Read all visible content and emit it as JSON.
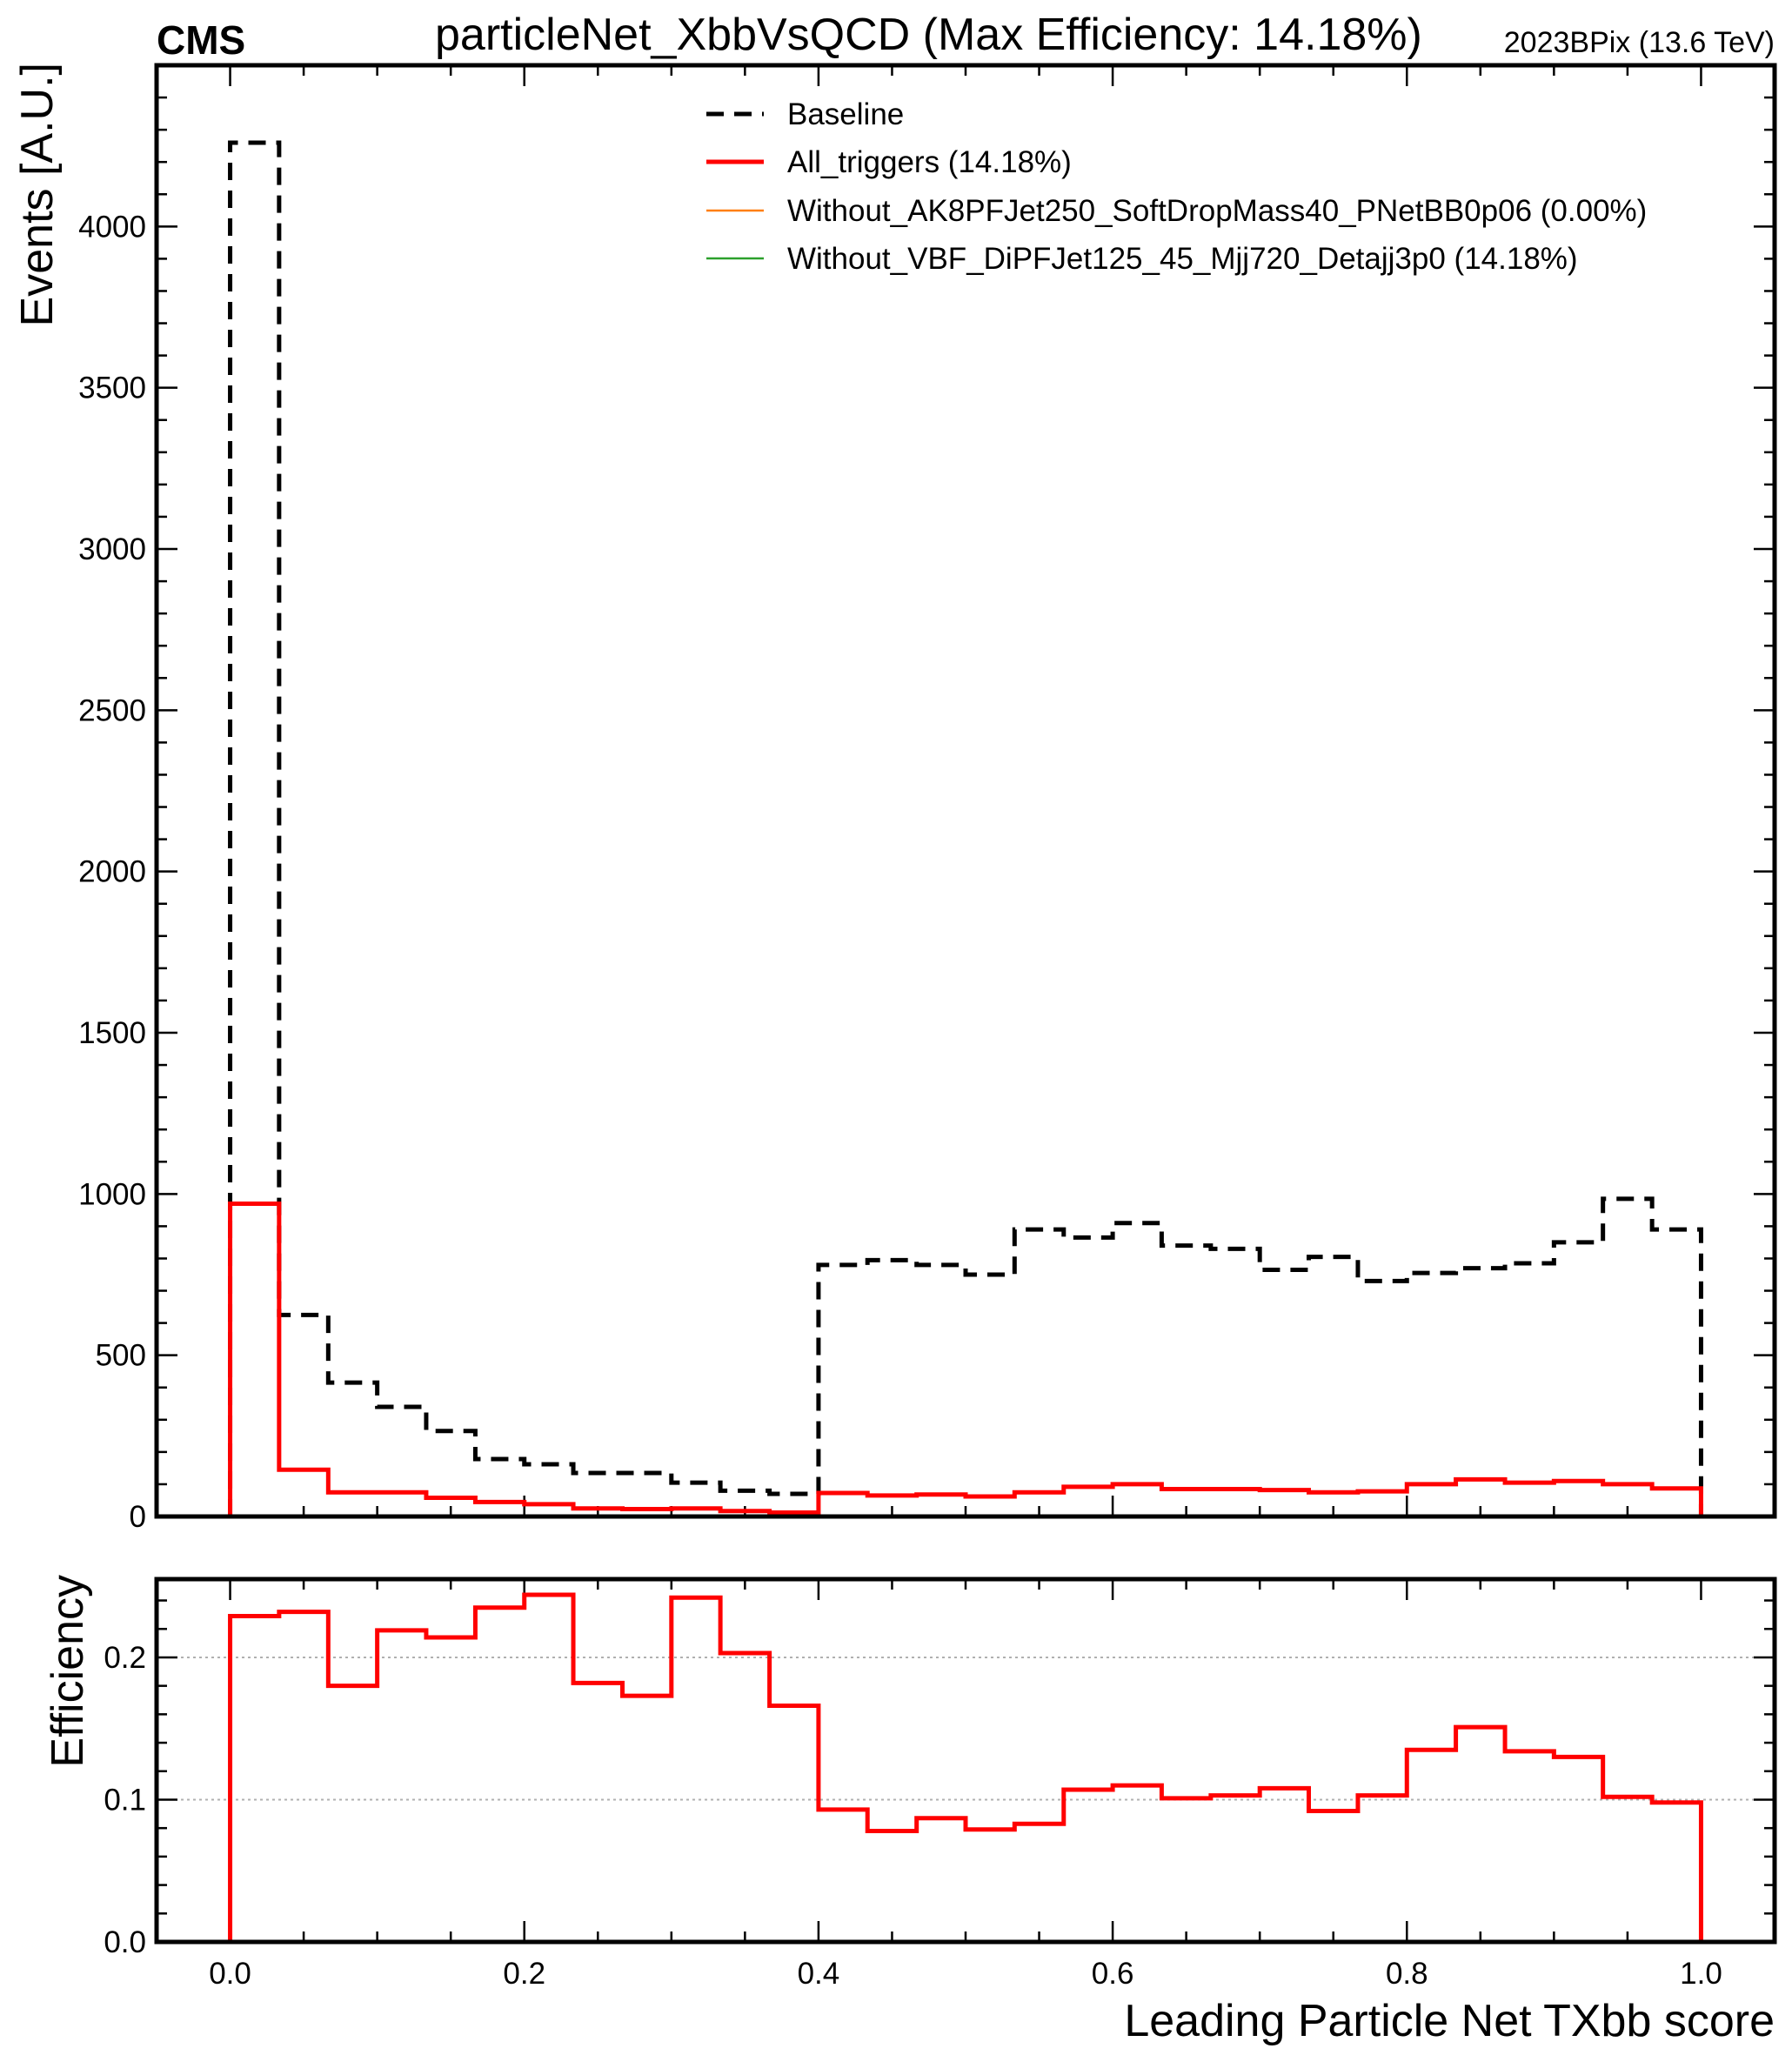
{
  "header": {
    "experiment": "CMS",
    "title": "particleNet_XbbVsQCD (Max Efficiency: 14.18%)",
    "run_info": "2023BPix (13.6 TeV)"
  },
  "colors": {
    "baseline": "#000000",
    "all_triggers": "#ff0000",
    "without_ak8": "#ff7f0e",
    "without_vbf": "#2ca02c",
    "grid": "#b0b0b0"
  },
  "chart_data": [
    {
      "type": "histogram-step",
      "xlabel": "",
      "ylabel": "Events [A.U.]",
      "xlim": [
        -0.05,
        1.05
      ],
      "ylim": [
        0,
        4500
      ],
      "yticks": [
        "0",
        "500",
        "1000",
        "1500",
        "2000",
        "2500",
        "3000",
        "3500",
        "4000"
      ],
      "grid": false,
      "legend_position": "top-right",
      "legend": [
        {
          "label": "Baseline",
          "style": "dashed",
          "color": "#000000"
        },
        {
          "label": "All_triggers (14.18%)",
          "style": "solid-thick",
          "color": "#ff0000"
        },
        {
          "label": "Without_AK8PFJet250_SoftDropMass40_PNetBB0p06 (0.00%)",
          "style": "solid-thin",
          "color": "#ff7f0e"
        },
        {
          "label": "Without_VBF_DiPFJet125_45_Mjj720_Detajj3p0 (14.18%)",
          "style": "solid-thin",
          "color": "#2ca02c"
        }
      ],
      "bin_edges": [
        0.0,
        0.0333,
        0.0667,
        0.1,
        0.1333,
        0.1667,
        0.2,
        0.2333,
        0.2667,
        0.3,
        0.3333,
        0.3667,
        0.4,
        0.4333,
        0.4667,
        0.5,
        0.5333,
        0.5667,
        0.6,
        0.6333,
        0.6667,
        0.7,
        0.7333,
        0.7667,
        0.8,
        0.8333,
        0.8667,
        0.9,
        0.9333,
        0.9667,
        1.0
      ],
      "series": [
        {
          "name": "Baseline",
          "values": [
            4260,
            625,
            415,
            340,
            265,
            178,
            162,
            135,
            135,
            105,
            80,
            70,
            780,
            795,
            780,
            750,
            890,
            865,
            910,
            840,
            830,
            765,
            805,
            730,
            755,
            770,
            785,
            850,
            985,
            890
          ]
        },
        {
          "name": "All_triggers (14.18%)",
          "values": [
            970,
            145,
            75,
            75,
            58,
            45,
            38,
            25,
            23,
            25,
            17,
            12,
            73,
            65,
            68,
            62,
            75,
            92,
            100,
            85,
            85,
            82,
            75,
            78,
            100,
            115,
            105,
            110,
            100,
            87
          ]
        }
      ]
    },
    {
      "type": "histogram-step",
      "xlabel": "Leading Particle Net TXbb score",
      "ylabel": "Efficiency",
      "xlim": [
        -0.05,
        1.05
      ],
      "ylim": [
        0,
        0.255
      ],
      "yticks": [
        "0.0",
        "0.1",
        "0.2"
      ],
      "xticks": [
        "0.0",
        "0.2",
        "0.4",
        "0.6",
        "0.8",
        "1.0"
      ],
      "grid": true,
      "series": [
        {
          "name": "All_triggers (14.18%)",
          "values": [
            0.229,
            0.232,
            0.18,
            0.219,
            0.214,
            0.235,
            0.244,
            0.182,
            0.173,
            0.242,
            0.203,
            0.166,
            0.093,
            0.078,
            0.087,
            0.079,
            0.083,
            0.107,
            0.11,
            0.101,
            0.103,
            0.108,
            0.092,
            0.103,
            0.135,
            0.151,
            0.134,
            0.13,
            0.102,
            0.098
          ]
        }
      ]
    }
  ]
}
